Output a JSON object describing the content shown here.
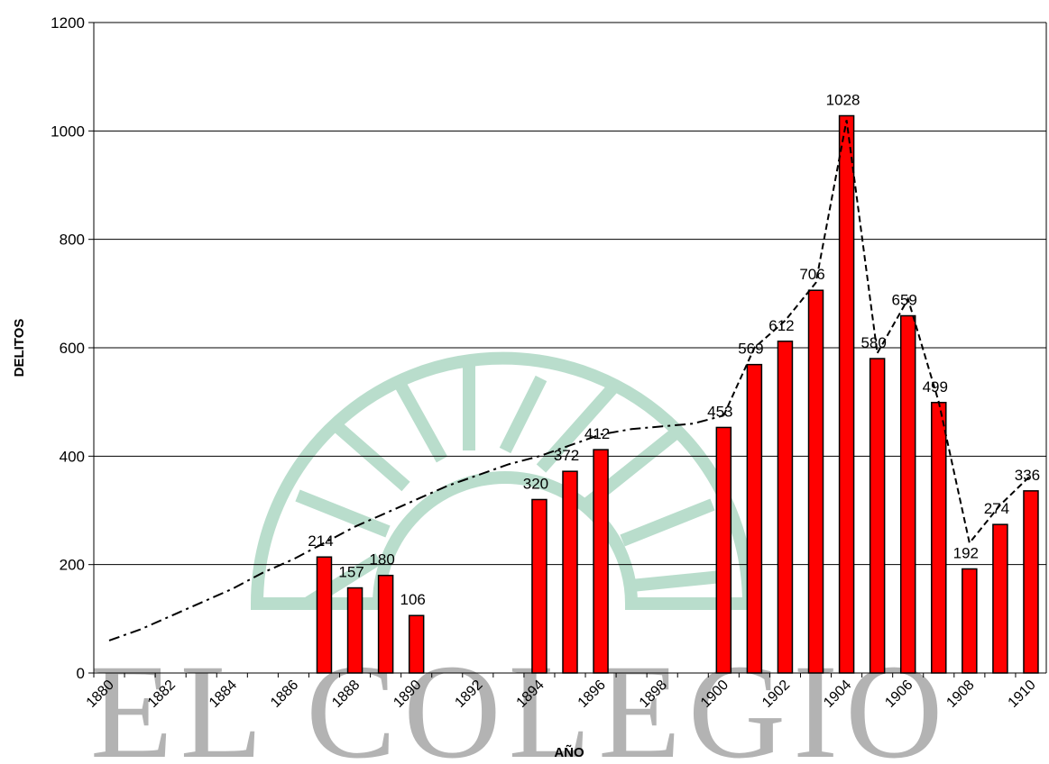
{
  "chart_data": {
    "type": "bar",
    "xlabel": "AÑO",
    "ylabel": "DELITOS",
    "watermark": "EL COLEGIO",
    "categories": [
      "1880",
      null,
      "1882",
      null,
      "1884",
      null,
      "1886",
      null,
      "1888",
      null,
      "1890",
      null,
      "1892",
      null,
      "1894",
      null,
      "1896",
      null,
      "1898",
      null,
      "1900",
      null,
      "1902",
      null,
      "1904",
      null,
      "1906",
      null,
      "1908",
      null,
      "1910"
    ],
    "values": [
      null,
      null,
      null,
      null,
      null,
      null,
      null,
      214,
      157,
      180,
      106,
      null,
      null,
      null,
      320,
      372,
      412,
      null,
      null,
      null,
      453,
      569,
      612,
      706,
      1028,
      580,
      659,
      499,
      192,
      274,
      336
    ],
    "color": "#ff0000",
    "trend_values": [
      60,
      80,
      105,
      130,
      155,
      185,
      210,
      240,
      270,
      295,
      320,
      345,
      365,
      385,
      400,
      420,
      440,
      450,
      455,
      460,
      475,
      600,
      650,
      720,
      1020,
      590,
      690,
      500,
      240,
      310,
      365
    ],
    "ylim": [
      0,
      1200
    ],
    "yticks": [
      0,
      200,
      400,
      600,
      800,
      1000,
      1200
    ],
    "grid": true
  }
}
